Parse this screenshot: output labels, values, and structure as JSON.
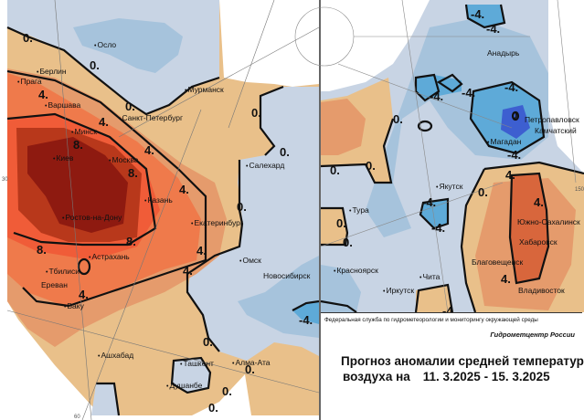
{
  "colors": {
    "light_blue": "#c8d4e4",
    "mid_blue": "#a6c3dc",
    "blue": "#5eaad8",
    "deep_blue": "#3d5fd0",
    "tan": "#e9c08a",
    "light_orange": "#e59b6c",
    "orange": "#ef7a4b",
    "red_orange": "#f05c38",
    "dark_red": "#b8381b",
    "darkest_red": "#8e1a10"
  },
  "cities_left": [
    "Осло",
    "Берлин",
    "Прага",
    "Варшава",
    "Мурманск",
    "Санкт-Петербург",
    "Минск",
    "Киев",
    "Москва",
    "Салехард",
    "Казань",
    "Ростов-на-Дону",
    "Екатеринбург",
    "Астрахань",
    "Омск",
    "Тбилиси",
    "Новосибирск",
    "Ереван",
    "Баку",
    "Ашхабад",
    "Ташкент",
    "Алма-Ата",
    "Душанбе"
  ],
  "cities_right": [
    "Анадырь",
    "Петропавловск",
    "Камчатский",
    "Магадан",
    "Якутск",
    "Тура",
    "Южно-Сахалинск",
    "Хабаровск",
    "Благовещенск",
    "Красноярск",
    "Чита",
    "Владивосток",
    "Иркутск"
  ],
  "contours": {
    "zero": "0.",
    "four": "4.",
    "eight": "8.",
    "minus_four": "-4.",
    "zero_plain": "0"
  },
  "graticule_labels": [
    "30",
    "60",
    "150"
  ],
  "footer": {
    "agency": "Федеральная служба по гидрометеорологии и мониторингу окружающей среды",
    "center": "Гидрометцентр России",
    "title_line1": "Прогноз аномалии средней температуры",
    "title_line2_prefix": "воздуха на",
    "dates": "11. 3.2025 - 15. 3.2025"
  }
}
